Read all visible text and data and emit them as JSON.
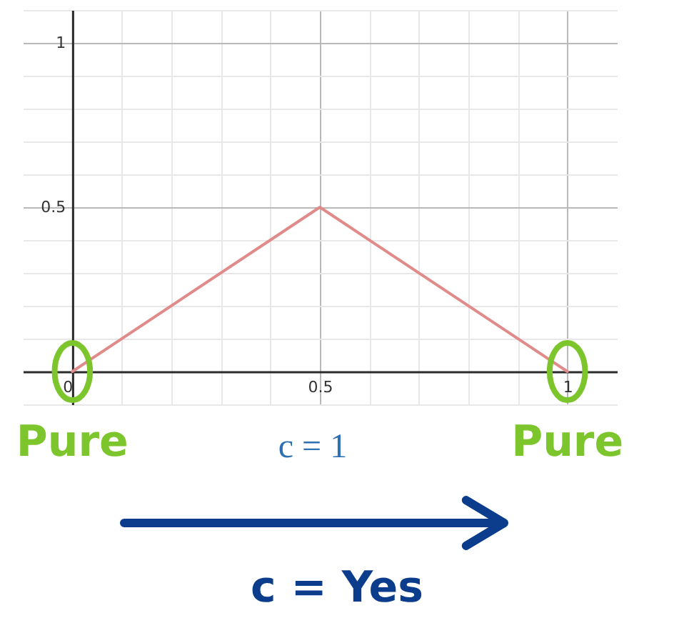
{
  "chart_data": {
    "type": "line",
    "x": [
      0,
      0.5,
      1
    ],
    "series": [
      {
        "color": "#e08a8a",
        "values": [
          0,
          0.5,
          0
        ]
      }
    ],
    "xlim": [
      -0.1,
      1.1
    ],
    "ylim": [
      -0.1,
      1.1
    ],
    "xticks": [
      0,
      {
        "value": 0.1,
        "label": null
      },
      {
        "value": 0.2,
        "label": null
      },
      {
        "value": 0.3,
        "label": null
      },
      {
        "value": 0.4,
        "label": null
      },
      0.5,
      {
        "value": 0.6,
        "label": null
      },
      {
        "value": 0.7,
        "label": null
      },
      {
        "value": 0.8,
        "label": null
      },
      {
        "value": 0.9,
        "label": null
      },
      1
    ],
    "yticks": [
      {
        "value": -0.1,
        "label": null
      },
      {
        "value": 0,
        "label": null
      },
      {
        "value": 0.1,
        "label": null
      },
      {
        "value": 0.2,
        "label": null
      },
      {
        "value": 0.3,
        "label": null
      },
      {
        "value": 0.4,
        "label": null
      },
      0.5,
      {
        "value": 0.6,
        "label": null
      },
      {
        "value": 0.7,
        "label": null
      },
      {
        "value": 0.8,
        "label": null
      },
      {
        "value": 0.9,
        "label": null
      },
      1,
      {
        "value": 1.1,
        "label": null
      }
    ],
    "grid": true,
    "annotations": [
      {
        "text": "Pure",
        "x": 0,
        "y": 0
      },
      {
        "text": "Pure",
        "x": 1,
        "y": 0
      },
      "c = 1",
      "c = Yes"
    ]
  }
}
